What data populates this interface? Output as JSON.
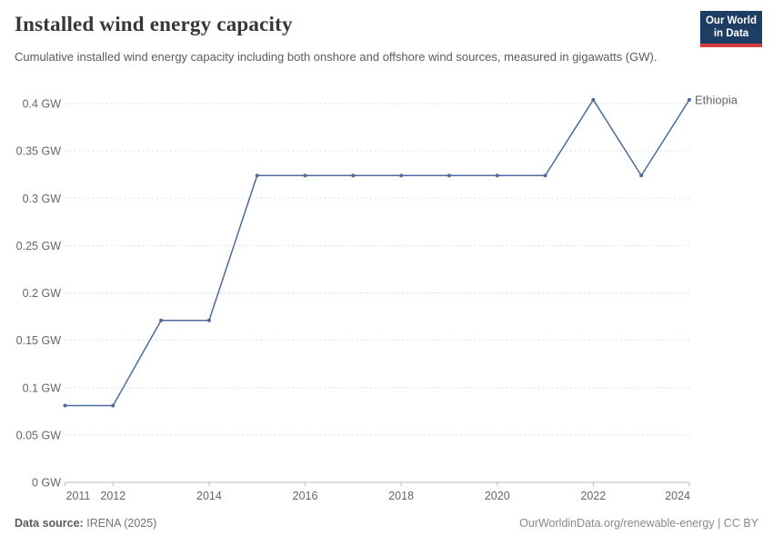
{
  "header": {
    "title": "Installed wind energy capacity",
    "subtitle": "Cumulative installed wind energy capacity including both onshore and offshore wind sources, measured in gigawatts (GW).",
    "logo": {
      "line1": "Our World",
      "line2": "in Data",
      "bg_color": "#1d3d63",
      "accent_color": "#d73c3c"
    }
  },
  "chart_data": {
    "type": "line",
    "title": "Installed wind energy capacity",
    "unit": "GW",
    "x": [
      2011,
      2012,
      2013,
      2014,
      2015,
      2016,
      2017,
      2018,
      2019,
      2020,
      2021,
      2022,
      2023,
      2024
    ],
    "series": [
      {
        "name": "Ethiopia",
        "color": "#4c6a9c",
        "values": [
          0.081,
          0.081,
          0.171,
          0.171,
          0.324,
          0.324,
          0.324,
          0.324,
          0.324,
          0.324,
          0.324,
          0.404,
          0.324,
          0.404
        ]
      }
    ],
    "xlim": [
      2011,
      2024
    ],
    "ylim": [
      0,
      0.4
    ],
    "xlabel": "",
    "ylabel": "",
    "grid": "horizontal-dashed",
    "legend_position": "end-of-line-label",
    "y_ticks": [
      {
        "value": 0,
        "label": "0 GW"
      },
      {
        "value": 0.05,
        "label": "0.05 GW"
      },
      {
        "value": 0.1,
        "label": "0.1 GW"
      },
      {
        "value": 0.15,
        "label": "0.15 GW"
      },
      {
        "value": 0.2,
        "label": "0.2 GW"
      },
      {
        "value": 0.25,
        "label": "0.25 GW"
      },
      {
        "value": 0.3,
        "label": "0.3 GW"
      },
      {
        "value": 0.35,
        "label": "0.35 GW"
      },
      {
        "value": 0.4,
        "label": "0.4 GW"
      }
    ],
    "x_ticks": [
      {
        "value": 2011,
        "label": "2011",
        "anchor": "start"
      },
      {
        "value": 2012,
        "label": "2012",
        "anchor": "middle"
      },
      {
        "value": 2014,
        "label": "2014",
        "anchor": "middle"
      },
      {
        "value": 2016,
        "label": "2016",
        "anchor": "middle"
      },
      {
        "value": 2018,
        "label": "2018",
        "anchor": "middle"
      },
      {
        "value": 2020,
        "label": "2020",
        "anchor": "middle"
      },
      {
        "value": 2022,
        "label": "2022",
        "anchor": "middle"
      },
      {
        "value": 2024,
        "label": "2024",
        "anchor": "end"
      }
    ]
  },
  "footer": {
    "data_source_label": "Data source:",
    "data_source_value": "IRENA (2025)",
    "attribution": "OurWorldinData.org/renewable-energy | CC BY"
  }
}
